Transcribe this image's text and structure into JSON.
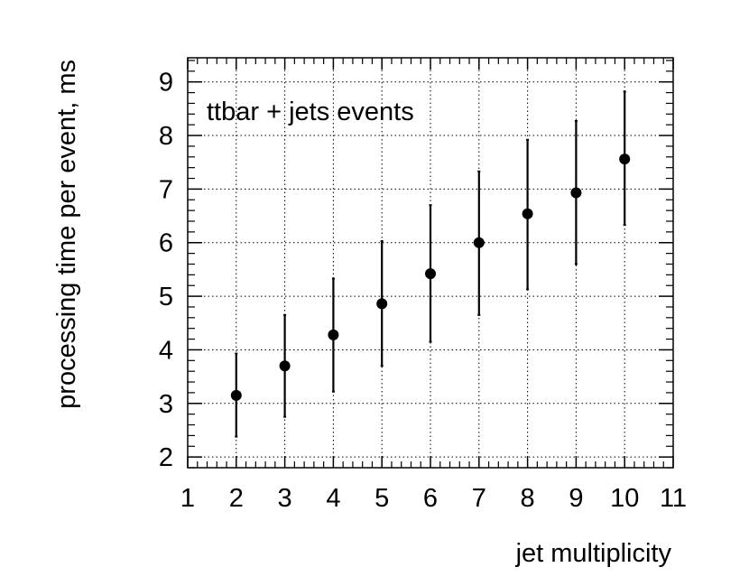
{
  "chart_data": {
    "type": "scatter",
    "title": "",
    "annotation": "ttbar + jets events",
    "xlabel": "jet multiplicity",
    "ylabel": "processing time per event, ms",
    "xlim": [
      1,
      11
    ],
    "ylim": [
      1.8,
      9.45
    ],
    "xticks": [
      1,
      2,
      3,
      4,
      5,
      6,
      7,
      8,
      9,
      10,
      11
    ],
    "yticks": [
      2,
      3,
      4,
      5,
      6,
      7,
      8,
      9
    ],
    "grid": true,
    "series": [
      {
        "x": [
          2,
          3,
          4,
          5,
          6,
          7,
          8,
          9,
          10
        ],
        "y": [
          3.15,
          3.7,
          4.28,
          4.86,
          5.42,
          6.0,
          6.54,
          6.93,
          7.56
        ],
        "y_err_low": [
          2.38,
          2.75,
          3.22,
          3.7,
          4.15,
          4.65,
          5.13,
          5.6,
          6.33
        ],
        "y_err_high": [
          3.93,
          4.65,
          5.33,
          6.03,
          6.7,
          7.33,
          7.92,
          8.27,
          8.82
        ]
      }
    ]
  }
}
